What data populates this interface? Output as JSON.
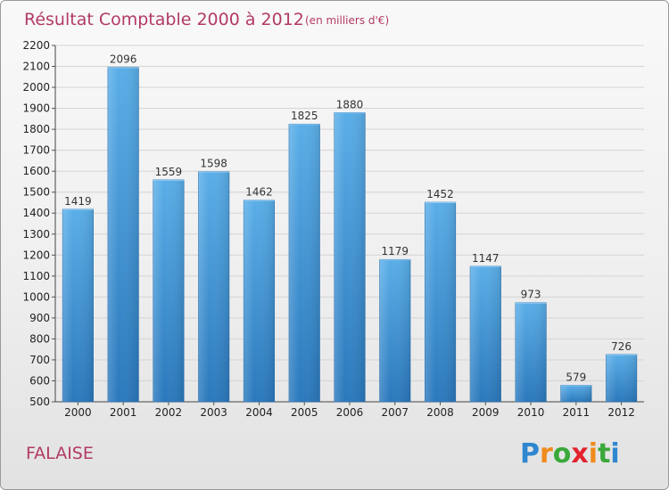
{
  "chart_data": {
    "type": "bar",
    "title": "Résultat Comptable 2000 à 2012",
    "subtitle": "(en milliers d'€)",
    "xlabel": "",
    "ylabel": "",
    "categories": [
      "2000",
      "2001",
      "2002",
      "2003",
      "2004",
      "2005",
      "2006",
      "2007",
      "2008",
      "2009",
      "2010",
      "2011",
      "2012"
    ],
    "values": [
      1419,
      2096,
      1559,
      1598,
      1462,
      1825,
      1880,
      1179,
      1452,
      1147,
      973,
      579,
      726
    ],
    "data_labels": [
      "1419",
      "2096",
      "1559",
      "1598",
      "1462",
      "1825",
      "1880",
      "1179",
      "1452",
      "1147",
      "973",
      "579",
      "726"
    ],
    "ylim": [
      500,
      2200
    ],
    "yticks": [
      500,
      600,
      700,
      800,
      900,
      1000,
      1100,
      1200,
      1300,
      1400,
      1500,
      1600,
      1700,
      1800,
      1900,
      2000,
      2100,
      2200
    ],
    "ytick_labels": [
      "500",
      "600",
      "700",
      "800",
      "900",
      "1000",
      "1100",
      "1200",
      "1300",
      "1400",
      "1500",
      "1600",
      "1700",
      "1800",
      "1900",
      "2000",
      "2100",
      "2200"
    ],
    "grid": true,
    "legend": "none",
    "colors": {
      "bar": "#3b91d4",
      "bar_light": "#5aaee8",
      "bar_dark": "#2a78bc",
      "grid": "#d4d4d4",
      "title": "#b23a66"
    }
  },
  "place": "FALAISE",
  "logo": {
    "text": "Proxiti",
    "letters": [
      {
        "char": "P",
        "color": "#2f87d0"
      },
      {
        "char": "r",
        "color": "#f08a1c"
      },
      {
        "char": "o",
        "color": "#3aa83a"
      },
      {
        "char": "x",
        "color": "#e2232e"
      },
      {
        "char": "i",
        "color": "#f08a1c"
      },
      {
        "char": "t",
        "color": "#3aa83a"
      },
      {
        "char": "i",
        "color": "#2f87d0"
      }
    ]
  }
}
